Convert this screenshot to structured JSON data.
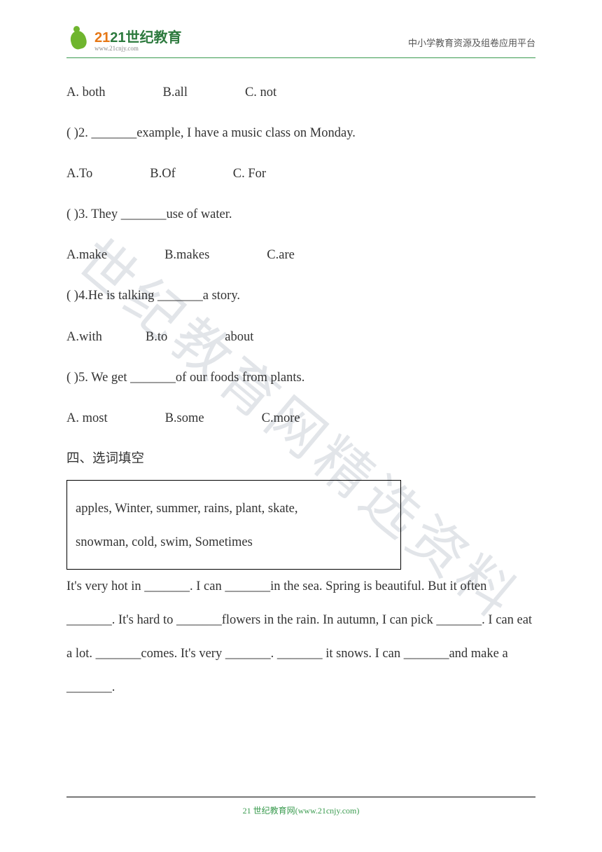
{
  "header": {
    "logo_main": "21世纪教育",
    "logo_url": "www.21cnjy.com",
    "right_text": "中小学教育资源及组卷应用平台"
  },
  "watermark": "世纪教育网精选资料",
  "q1": {
    "options_line": "A. both",
    "opt_b": "B.all",
    "opt_c": "C. not"
  },
  "q2": {
    "stem_prefix": "(       )2. _______example, I have a music class on Monday.",
    "opt_a": "A.To",
    "opt_b": "B.Of",
    "opt_c": "C. For"
  },
  "q3": {
    "stem": "(       )3. They _______use of water.",
    "opt_a": "A.make",
    "opt_b": "B.makes",
    "opt_c": "C.are"
  },
  "q4": {
    "stem": "(       )4.He is talking _______a story.",
    "opt_a": "A.with",
    "opt_b": "B.to",
    "opt_c": "about"
  },
  "q5": {
    "stem": "(       )5. We get _______of our foods from plants.",
    "opt_a": "A. most",
    "opt_b": "B.some",
    "opt_c": "C.more"
  },
  "section4": {
    "title": "四、选词填空",
    "box_line1": "apples, Winter, summer, rains, plant, skate,",
    "box_line2": "snowman, cold, swim, Sometimes",
    "passage": "It's very hot in _______. I can _______in the sea. Spring is beautiful. But it often _______. It's hard to _______flowers in the rain. In autumn, I can pick _______. I can eat a lot. _______comes. It's very _______. _______ it snows. I can _______and make a _______."
  },
  "footer": {
    "text": "21 世纪教育网(www.21cnjy.com)"
  },
  "colors": {
    "brand_green": "#3a9b4f",
    "logo_green": "#6fb52e",
    "text": "#333333",
    "muted": "#888888",
    "watermark": "rgba(150,160,175,0.28)"
  }
}
